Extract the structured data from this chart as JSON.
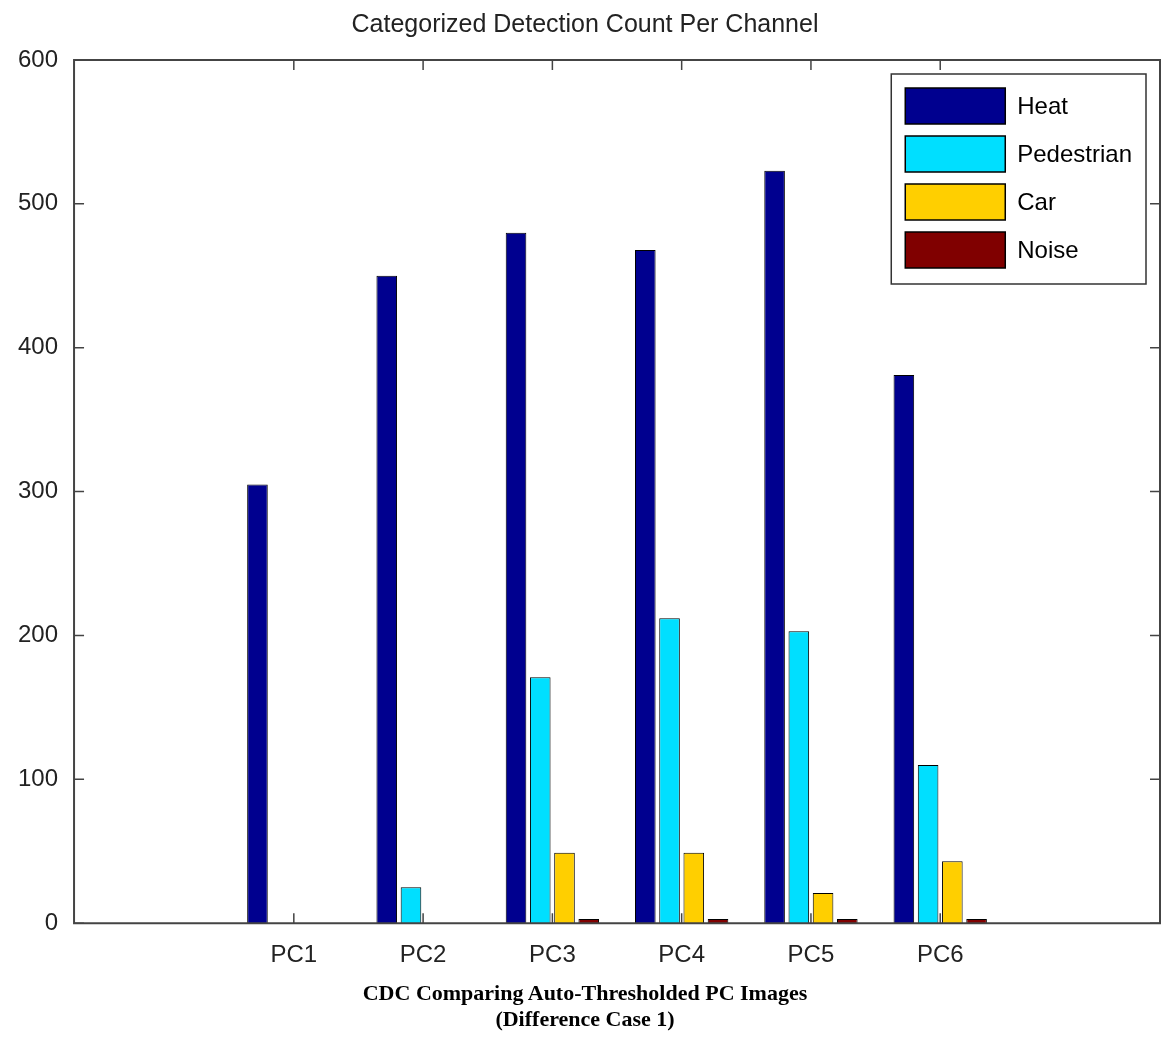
{
  "chart_data": {
    "type": "bar",
    "title": "Categorized Detection Count Per Channel",
    "categories": [
      "PC1",
      "PC2",
      "PC3",
      "PC4",
      "PC5",
      "PC6"
    ],
    "series": [
      {
        "name": "Heat",
        "color": "#00008f",
        "values": [
          305,
          450,
          480,
          468,
          523,
          381
        ]
      },
      {
        "name": "Pedestrian",
        "color": "#00dfff",
        "values": [
          0,
          25,
          171,
          212,
          203,
          110
        ]
      },
      {
        "name": "Car",
        "color": "#ffcf00",
        "values": [
          0,
          0,
          49,
          49,
          21,
          43
        ]
      },
      {
        "name": "Noise",
        "color": "#800000",
        "values": [
          0,
          0,
          3,
          3,
          3,
          3
        ]
      }
    ],
    "ylim": [
      0,
      600
    ],
    "yticks": [
      0,
      100,
      200,
      300,
      400,
      500,
      600
    ],
    "legend": "top right",
    "annotations": [
      "CDC Comparing Auto-Thresholded PC Images",
      "(Difference Case 1)"
    ]
  }
}
